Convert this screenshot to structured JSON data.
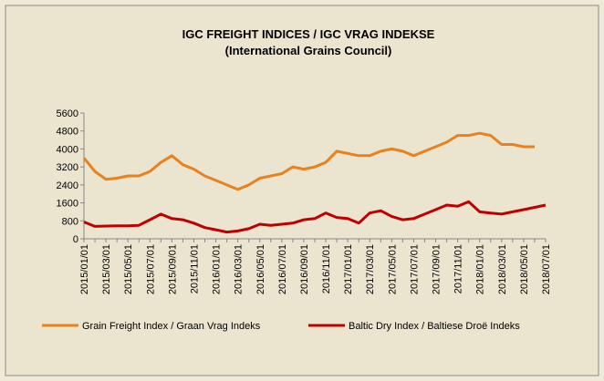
{
  "chart_data": {
    "type": "line",
    "title": "IGC FREIGHT INDICES / IGC VRAG INDEKSE",
    "subtitle": "(International Grains Council)",
    "categories": [
      "2015/01/01",
      null,
      "2015/03/01",
      null,
      "2015/05/01",
      null,
      "2015/07/01",
      null,
      "2015/09/01",
      null,
      "2015/11/01",
      null,
      "2016/01/01",
      null,
      "2016/03/01",
      null,
      "2016/05/01",
      null,
      "2016/07/01",
      null,
      "2016/09/01",
      null,
      "2016/11/01",
      null,
      "2017/01/01",
      null,
      "2017/03/01",
      null,
      "2017/05/01",
      null,
      "2017/07/01",
      null,
      "2017/09/01",
      null,
      "2017/11/01",
      null,
      "2018/01/01",
      null,
      "2018/03/01",
      null,
      "2018/05/01",
      null,
      "2018/07/01"
    ],
    "series": [
      {
        "name": "Grain Freight Index / Graan Vrag Indeks",
        "color": "#e8821e",
        "values": [
          3600,
          3000,
          2650,
          2700,
          2800,
          2800,
          3000,
          3400,
          3700,
          3300,
          3100,
          2800,
          2600,
          2400,
          2200,
          2400,
          2700,
          2800,
          2900,
          3200,
          3100,
          3200,
          3400,
          3900,
          3800,
          3700,
          3700,
          3900,
          4000,
          3900,
          3700,
          3900,
          4100,
          4300,
          4600,
          4600,
          4700,
          4600,
          4200,
          4200,
          4100,
          4100,
          null
        ]
      },
      {
        "name": "Baltic Dry Index / Baltiese Droë Indeks",
        "color": "#c00000",
        "values": [
          750,
          550,
          570,
          580,
          580,
          600,
          850,
          1100,
          900,
          850,
          700,
          500,
          400,
          300,
          350,
          450,
          650,
          600,
          650,
          700,
          850,
          900,
          1150,
          950,
          900,
          700,
          1150,
          1250,
          1000,
          850,
          900,
          1100,
          1300,
          1500,
          1450,
          1650,
          1200,
          1150,
          1100,
          1200,
          1300,
          1400,
          1500
        ]
      }
    ],
    "ylim": [
      0,
      5600
    ],
    "yticks": [
      0,
      800,
      1600,
      2400,
      3200,
      4000,
      4800,
      5600
    ],
    "legend": "bottom"
  }
}
